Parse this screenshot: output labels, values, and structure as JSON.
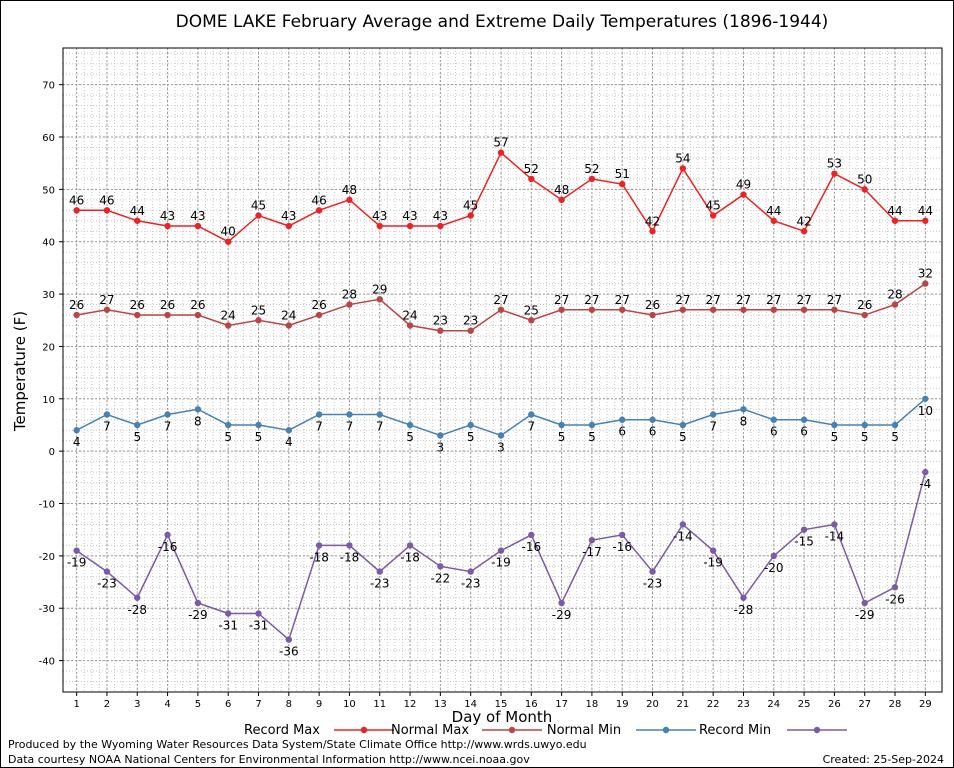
{
  "chart_data": {
    "type": "line",
    "title": "DOME LAKE February Average and Extreme Daily Temperatures (1896-1944)",
    "xlabel": "Day of Month",
    "ylabel": "Temperature (F)",
    "ylim": [
      -46,
      77
    ],
    "yticks": [
      -40,
      -30,
      -20,
      -10,
      0,
      10,
      20,
      30,
      40,
      50,
      60,
      70
    ],
    "x": [
      1,
      2,
      3,
      4,
      5,
      6,
      7,
      8,
      9,
      10,
      11,
      12,
      13,
      14,
      15,
      16,
      17,
      18,
      19,
      20,
      21,
      22,
      23,
      24,
      25,
      26,
      27,
      28,
      29
    ],
    "grid": true,
    "legend_position": "bottom",
    "series": [
      {
        "name": "Record Max",
        "color": "#ee2222",
        "label_pos": "above",
        "values": [
          46,
          46,
          44,
          43,
          43,
          40,
          45,
          43,
          46,
          48,
          43,
          43,
          43,
          45,
          57,
          52,
          48,
          52,
          51,
          42,
          54,
          45,
          49,
          44,
          42,
          53,
          50,
          44,
          44
        ]
      },
      {
        "name": "Normal Max",
        "color": "#bb4444",
        "label_pos": "above",
        "values": [
          26,
          27,
          26,
          26,
          26,
          24,
          25,
          24,
          26,
          28,
          29,
          24,
          23,
          23,
          27,
          25,
          27,
          27,
          27,
          26,
          27,
          27,
          27,
          27,
          27,
          27,
          26,
          28,
          32
        ]
      },
      {
        "name": "Normal Min",
        "color": "#4682b4",
        "label_pos": "below",
        "values": [
          4,
          7,
          5,
          7,
          8,
          5,
          5,
          4,
          7,
          7,
          7,
          5,
          3,
          5,
          3,
          7,
          5,
          5,
          6,
          6,
          5,
          7,
          8,
          6,
          6,
          5,
          5,
          5,
          10
        ]
      },
      {
        "name": "Record Min",
        "color": "#7b5aa6",
        "label_pos": "below",
        "values": [
          -19,
          -23,
          -28,
          -16,
          -29,
          -31,
          -31,
          -36,
          -18,
          -18,
          -23,
          -18,
          -22,
          -23,
          -19,
          -16,
          -29,
          -17,
          -16,
          -23,
          -14,
          -19,
          -28,
          -20,
          -15,
          -14,
          -29,
          -26,
          -4
        ]
      }
    ]
  },
  "footer": {
    "line1": "Produced by the Wyoming Water Resources Data System/State Climate Office http://www.wrds.uwyo.edu",
    "line2": "Data courtesy NOAA National Centers for Environmental Information http://www.ncei.noaa.gov",
    "created": "Created:  25-Sep-2024"
  }
}
